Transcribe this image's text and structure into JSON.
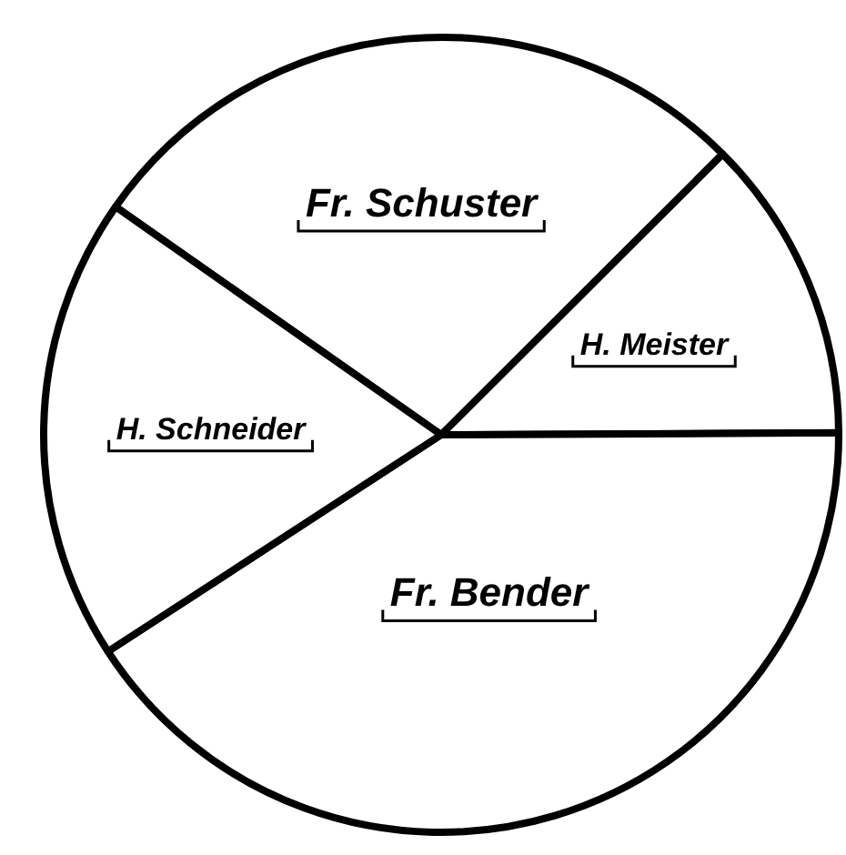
{
  "chart_data": {
    "type": "pie",
    "categories": [
      "Fr. Schuster",
      "H. Meister",
      "Fr. Bender",
      "H. Schneider"
    ],
    "values": [
      27.8,
      12.4,
      40.9,
      18.9
    ],
    "colors": [
      "#ffffff",
      "#ffffff",
      "#ffffff",
      "#ffffff"
    ],
    "legend": false
  }
}
